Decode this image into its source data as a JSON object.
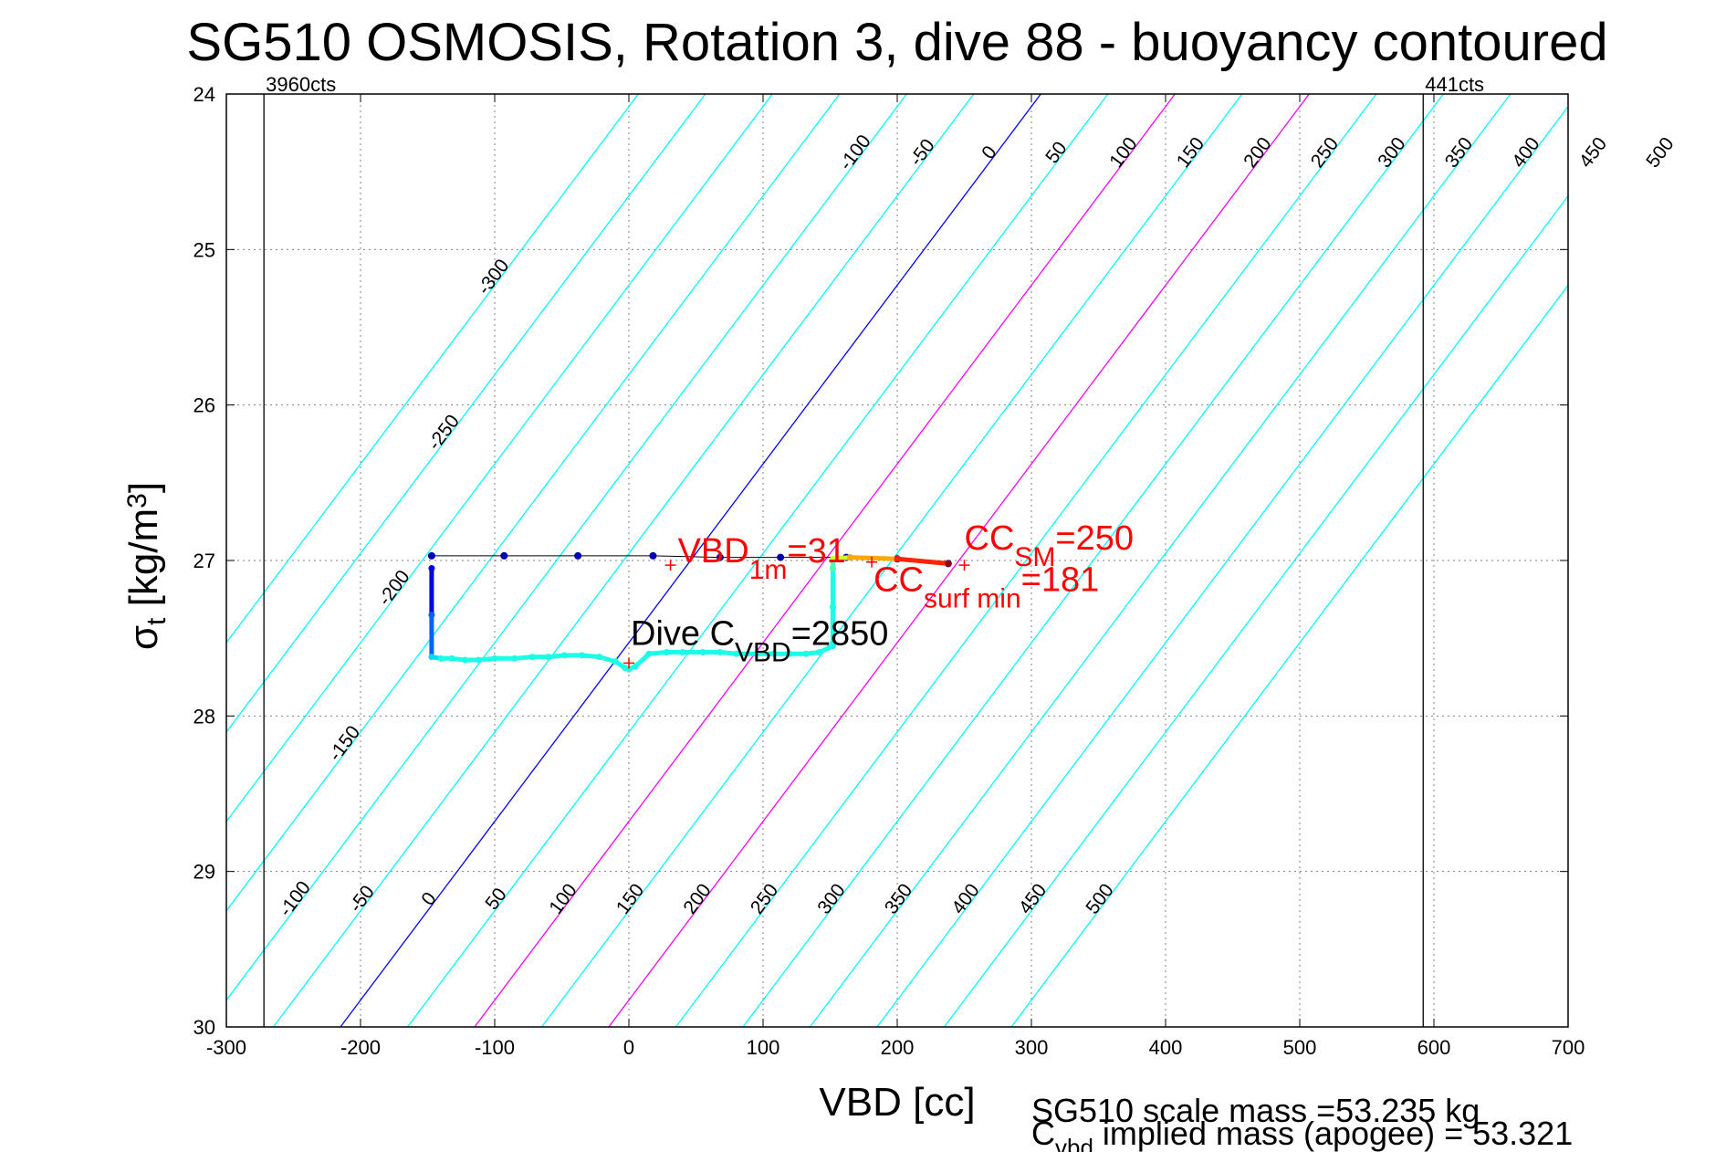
{
  "chart_data": {
    "type": "scatter",
    "title": "SG510 OSMOSIS, Rotation 3, dive 88 - buoyancy contoured",
    "xlabel": "VBD [cc]",
    "ylabel": "σ",
    "ylabel_sub": "t",
    "ylabel_unit": " [kg/m",
    "ylabel_sup": "3",
    "ylabel_close": "]",
    "xlim": [
      -300,
      700
    ],
    "ylim": [
      24,
      30
    ],
    "y_reversed": true,
    "grid": true,
    "x_ticks": [
      -300,
      -200,
      -100,
      0,
      100,
      200,
      300,
      400,
      500,
      600,
      700
    ],
    "y_ticks": [
      24,
      25,
      26,
      27,
      28,
      29,
      30
    ],
    "vbd_limits": {
      "left": {
        "x": -272,
        "label": "3960cts"
      },
      "right": {
        "x": 592,
        "label": "441cts"
      }
    },
    "contour_levels": {
      "values": [
        -300,
        -250,
        -200,
        -150,
        -100,
        -50,
        0,
        50,
        100,
        150,
        200,
        250,
        300,
        350,
        400,
        450,
        500
      ],
      "zero_color": "#0000ff",
      "highlight_color": "#ff00ff",
      "highlight_levels": [
        100,
        200
      ],
      "other_color": "#00ffff",
      "slope_cc_per_sigma": -87,
      "intercept_x_at_sigma30": -215
    },
    "contour_labels_top": [
      "-100",
      "-50",
      "0",
      "50",
      "100",
      "150",
      "200",
      "250",
      "300",
      "350",
      "400",
      "450",
      "500"
    ],
    "contour_labels_left": [
      "-300",
      "-250",
      "-200",
      "-150"
    ],
    "contour_labels_bottom": [
      "-100",
      "-50",
      "0",
      "50",
      "100",
      "150",
      "200",
      "250",
      "300",
      "350",
      "400",
      "450",
      "500"
    ],
    "trajectory": {
      "x": [
        -147,
        -147,
        -147,
        -140,
        -132,
        -122,
        -112,
        -100,
        -85,
        -72,
        -60,
        -48,
        -35,
        -22,
        -10,
        -3,
        0,
        5,
        15,
        28,
        40,
        55,
        68,
        80,
        95,
        108,
        120,
        132,
        142,
        152,
        152,
        152,
        152,
        165,
        200,
        238
      ],
      "y": [
        27.05,
        27.35,
        27.62,
        27.63,
        27.63,
        27.64,
        27.64,
        27.63,
        27.63,
        27.62,
        27.62,
        27.61,
        27.61,
        27.62,
        27.65,
        27.69,
        27.7,
        27.68,
        27.6,
        27.59,
        27.59,
        27.59,
        27.59,
        27.6,
        27.6,
        27.6,
        27.6,
        27.6,
        27.59,
        27.55,
        27.3,
        27.05,
        26.99,
        26.98,
        26.99,
        27.02
      ],
      "top_x": [
        -147,
        -93,
        -38,
        18,
        68,
        113,
        162,
        200,
        238
      ],
      "top_y": [
        26.97,
        26.97,
        26.97,
        26.97,
        26.98,
        26.98,
        26.98,
        26.99,
        27.02
      ]
    },
    "annotations": {
      "vbd_1m": {
        "main": "VBD",
        "sub": "1m",
        "suffix": "=31",
        "x": 31,
        "y": 27.03,
        "color": "#ff0000"
      },
      "cc_sm": {
        "main": "CC",
        "sub": "SM",
        "suffix": "=250",
        "x": 250,
        "y": 27.03,
        "color": "#ff0000"
      },
      "cc_surf_min": {
        "main": "CC",
        "sub": "surf min",
        "suffix": "=181",
        "x": 181,
        "y": 27.01,
        "color": "#ff0000"
      },
      "dive_c_vbd": {
        "main": "Dive C",
        "sub": "VBD",
        "suffix": "=2850",
        "x": 0,
        "y": 27.66,
        "color": "#000000"
      }
    },
    "footer": {
      "line1": "SG510 scale mass =53.235 kg",
      "line2_main": "C",
      "line2_sub": "vbd",
      "line2_rest": " implied mass (apogee) = 53.321"
    }
  }
}
